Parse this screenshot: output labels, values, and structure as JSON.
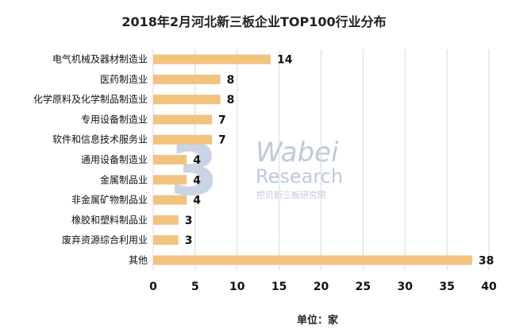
{
  "watermark": {
    "logo_text": "Wabei",
    "logo_subtext": "Research",
    "logo_cn": "挖贝新三板研究院"
  },
  "chart_data": {
    "type": "bar",
    "orientation": "horizontal",
    "title": "2018年2月河北新三板企业TOP100行业分布",
    "xlabel": "单位：家",
    "ylabel": "",
    "xlim": [
      0,
      40
    ],
    "xticks": [
      0,
      5,
      10,
      15,
      20,
      25,
      30,
      35,
      40
    ],
    "grid": true,
    "bar_color": "#F2C27F",
    "categories": [
      "电气机械及器材制造业",
      "医药制造业",
      "化学原料及化学制品制造业",
      "专用设备制造业",
      "软件和信息技术服务业",
      "通用设备制造业",
      "金属制品业",
      "非金属矿物制品业",
      "橡胶和塑料制品业",
      "废弃资源综合利用业",
      "其他"
    ],
    "values": [
      14,
      8,
      8,
      7,
      7,
      4,
      4,
      4,
      3,
      3,
      38
    ]
  }
}
